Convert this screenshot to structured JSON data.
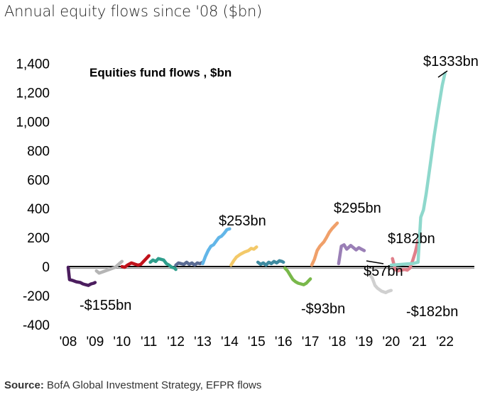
{
  "page": {
    "title": "Annual equity flows since '08 ($bn)",
    "source_label": "Source:",
    "source_text": "BofA Global Investment Strategy, EFPR flows"
  },
  "chart_data": {
    "type": "line",
    "title": "Equities fund flows , $bn",
    "xlabel": "",
    "ylabel": "",
    "ylim": [
      -400,
      1400
    ],
    "y_ticks": [
      -400,
      -200,
      0,
      200,
      400,
      600,
      800,
      1000,
      1200,
      1400
    ],
    "y_tick_labels": [
      "-400",
      "-200",
      "0",
      "200",
      "400",
      "600",
      "800",
      "1,000",
      "1,200",
      "1,400"
    ],
    "x_tick_labels": [
      "'08",
      "'09",
      "'10",
      "'11",
      "'12",
      "'13",
      "'14",
      "'15",
      "'16",
      "'17",
      "'18",
      "'19",
      "'20",
      "'21",
      "'22"
    ],
    "series": [
      {
        "name": "2008",
        "color": "#4b1d5e",
        "x": [
          0.0,
          0.05,
          0.15,
          0.3,
          0.45,
          0.55,
          0.65,
          0.75,
          0.85,
          0.95,
          1.0
        ],
        "values": [
          -5,
          -90,
          -95,
          -105,
          -110,
          -120,
          -125,
          -130,
          -120,
          -115,
          -110
        ]
      },
      {
        "name": "2009",
        "color": "#b5b5b5",
        "x": [
          1.05,
          1.15,
          1.3,
          1.45,
          1.6,
          1.75,
          1.9,
          2.0
        ],
        "values": [
          -30,
          -45,
          -35,
          -25,
          -15,
          -5,
          20,
          35
        ]
      },
      {
        "name": "2010",
        "color": "#c0121b",
        "x": [
          2.0,
          2.1,
          2.2,
          2.35,
          2.5,
          2.6,
          2.7,
          2.8,
          2.9,
          3.0
        ],
        "values": [
          0,
          -5,
          10,
          25,
          15,
          10,
          15,
          35,
          55,
          75
        ]
      },
      {
        "name": "2011",
        "color": "#2e9e8c",
        "x": [
          3.05,
          3.15,
          3.25,
          3.35,
          3.45,
          3.55,
          3.65,
          3.75,
          3.85,
          3.95,
          4.0
        ],
        "values": [
          30,
          45,
          35,
          55,
          50,
          45,
          20,
          10,
          -5,
          -10,
          -20
        ]
      },
      {
        "name": "2012",
        "color": "#5a6b93",
        "x": [
          4.0,
          4.1,
          4.2,
          4.3,
          4.4,
          4.5,
          4.6,
          4.7,
          4.8,
          4.9,
          5.0
        ],
        "values": [
          10,
          25,
          20,
          15,
          30,
          15,
          25,
          10,
          25,
          20,
          30
        ]
      },
      {
        "name": "2013",
        "color": "#62b6e8",
        "x": [
          5.0,
          5.1,
          5.2,
          5.3,
          5.4,
          5.5,
          5.6,
          5.7,
          5.8,
          5.9,
          6.0
        ],
        "values": [
          20,
          70,
          110,
          140,
          150,
          175,
          200,
          210,
          230,
          255,
          260
        ]
      },
      {
        "name": "2014",
        "color": "#f3c969",
        "x": [
          6.05,
          6.15,
          6.25,
          6.4,
          6.55,
          6.7,
          6.8,
          6.9,
          7.0
        ],
        "values": [
          10,
          40,
          65,
          85,
          100,
          110,
          125,
          120,
          135
        ]
      },
      {
        "name": "2015",
        "color": "#3e8aa0",
        "x": [
          7.05,
          7.15,
          7.25,
          7.35,
          7.45,
          7.55,
          7.65,
          7.75,
          7.85,
          7.95,
          8.0
        ],
        "values": [
          30,
          15,
          25,
          10,
          30,
          20,
          35,
          25,
          40,
          35,
          30
        ]
      },
      {
        "name": "2016",
        "color": "#79b84a",
        "x": [
          8.05,
          8.15,
          8.25,
          8.35,
          8.45,
          8.55,
          8.65,
          8.75,
          8.85,
          8.95,
          9.0
        ],
        "values": [
          -10,
          -30,
          -60,
          -90,
          -105,
          -115,
          -120,
          -125,
          -115,
          -95,
          -85
        ]
      },
      {
        "name": "2017",
        "color": "#f0a06a",
        "x": [
          9.05,
          9.15,
          9.25,
          9.35,
          9.5,
          9.6,
          9.7,
          9.8,
          9.9,
          10.0
        ],
        "values": [
          10,
          50,
          110,
          140,
          170,
          200,
          235,
          260,
          280,
          300
        ]
      },
      {
        "name": "2018",
        "color": "#9a7fb6",
        "x": [
          10.05,
          10.15,
          10.25,
          10.35,
          10.5,
          10.6,
          10.7,
          10.8,
          10.9,
          11.0
        ],
        "values": [
          20,
          140,
          150,
          120,
          145,
          130,
          115,
          130,
          120,
          110
        ]
      },
      {
        "name": "2019",
        "color": "#d0d0d0",
        "x": [
          11.05,
          11.15,
          11.3,
          11.4,
          11.5,
          11.65,
          11.8,
          11.9,
          12.0
        ],
        "values": [
          -10,
          -40,
          -80,
          -130,
          -150,
          -170,
          -180,
          -170,
          -165
        ]
      },
      {
        "name": "2020",
        "color": "#e07f8a",
        "x": [
          12.05,
          12.15,
          12.25,
          12.35,
          12.5,
          12.6,
          12.7,
          12.8,
          12.9,
          13.0
        ],
        "values": [
          55,
          -20,
          -30,
          -25,
          -20,
          -25,
          -10,
          40,
          100,
          180
        ]
      },
      {
        "name": "2021",
        "color": "#8ed8cc",
        "x": [
          12.0,
          12.2,
          12.4,
          12.6,
          12.8,
          13.0,
          13.1,
          13.2,
          13.3,
          13.45,
          13.6,
          13.75,
          13.9,
          14.0
        ],
        "values": [
          10,
          12,
          15,
          18,
          20,
          30,
          340,
          390,
          500,
          700,
          900,
          1080,
          1250,
          1333
        ]
      }
    ],
    "data_labels": [
      "-$155bn",
      "$253bn",
      "-$93bn",
      "$295bn",
      "$57bn",
      "$182bn",
      "-$182bn",
      "$1333bn"
    ]
  }
}
